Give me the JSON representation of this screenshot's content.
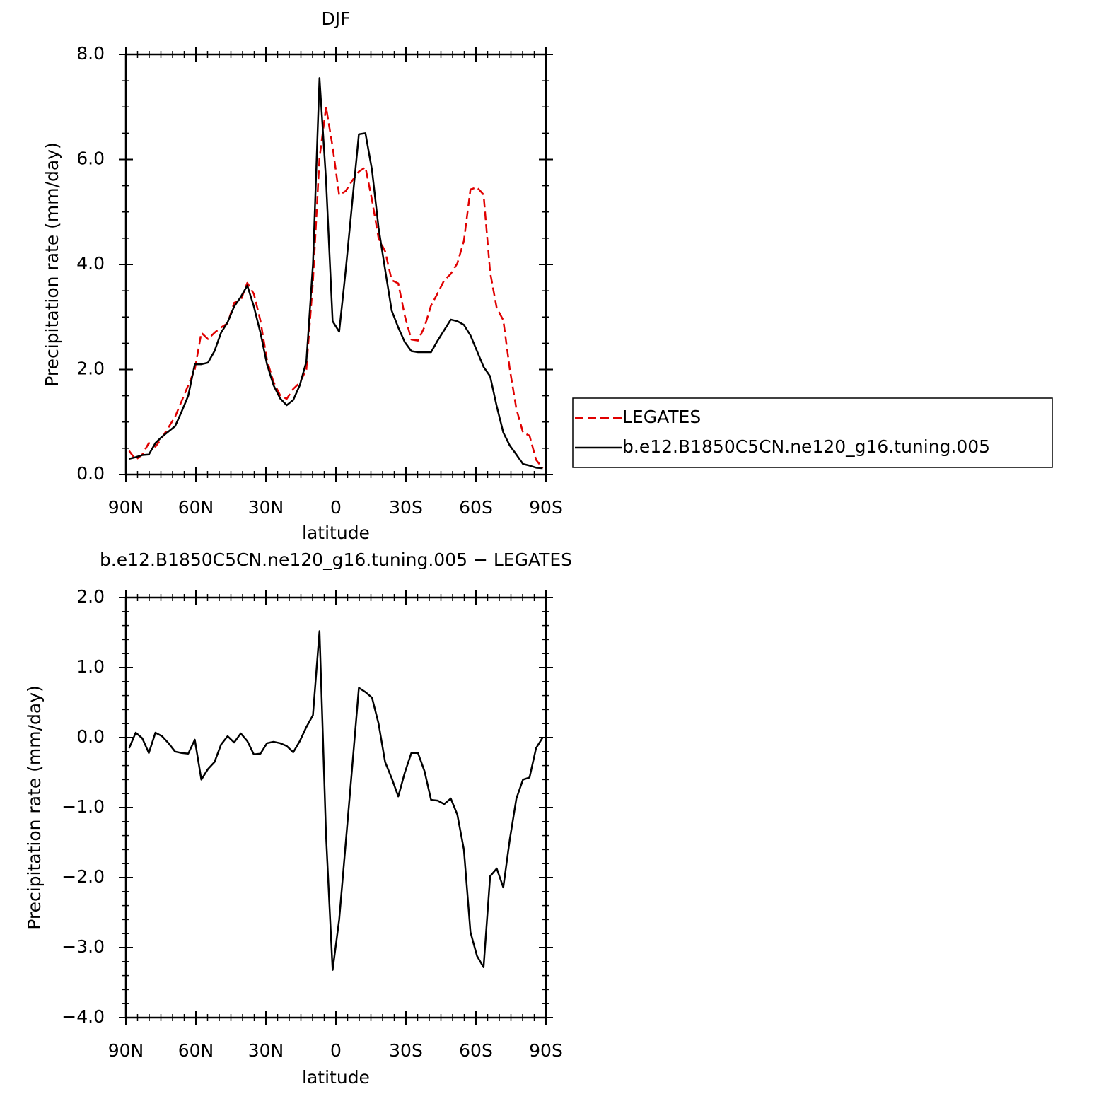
{
  "chart_data": [
    {
      "type": "line",
      "title": "DJF",
      "xlabel": "latitude",
      "ylabel": "Precipitation rate (mm/day)",
      "x": [
        88.59,
        85.78,
        82.97,
        80.16,
        77.34,
        74.53,
        71.72,
        68.91,
        66.09,
        63.28,
        60.47,
        57.66,
        54.84,
        52.03,
        49.22,
        46.41,
        43.59,
        40.78,
        37.97,
        35.16,
        32.34,
        29.53,
        26.72,
        23.91,
        21.09,
        18.28,
        15.47,
        12.66,
        9.84,
        7.03,
        4.22,
        1.41,
        -1.41,
        -4.22,
        -7.03,
        -9.84,
        -12.66,
        -15.47,
        -18.28,
        -21.09,
        -23.91,
        -26.72,
        -29.53,
        -32.34,
        -35.16,
        -37.97,
        -40.78,
        -43.59,
        -46.41,
        -49.22,
        -52.03,
        -54.84,
        -57.66,
        -60.47,
        -63.28,
        -66.09,
        -68.91,
        -71.72,
        -74.53,
        -77.34,
        -80.16,
        -82.97,
        -85.78,
        -88.59
      ],
      "series": [
        {
          "name": "LEGATES",
          "color": "#e00000",
          "linestyle": "dashed",
          "values": [
            0.45,
            0.28,
            0.38,
            0.6,
            0.53,
            0.7,
            0.9,
            1.1,
            1.4,
            1.7,
            2.0,
            2.7,
            2.58,
            2.7,
            2.8,
            2.88,
            3.27,
            3.32,
            3.65,
            3.44,
            2.93,
            2.18,
            1.76,
            1.51,
            1.44,
            1.63,
            1.75,
            2.0,
            3.68,
            6.03,
            7.0,
            6.24,
            5.32,
            5.4,
            5.6,
            5.77,
            5.85,
            5.23,
            4.5,
            4.25,
            3.7,
            3.64,
            3.02,
            2.57,
            2.55,
            2.81,
            3.22,
            3.45,
            3.7,
            3.82,
            4.02,
            4.45,
            5.43,
            5.47,
            5.33,
            3.85,
            3.17,
            2.94,
            2.0,
            1.25,
            0.8,
            0.74,
            0.28,
            0.12
          ]
        },
        {
          "name": "b.e12.B1850C5CN.ne120_g16.tuning.005",
          "color": "#000000",
          "linestyle": "solid",
          "values": [
            0.3,
            0.33,
            0.37,
            0.38,
            0.6,
            0.72,
            0.82,
            0.92,
            1.2,
            1.5,
            2.1,
            2.1,
            2.13,
            2.35,
            2.7,
            2.9,
            3.2,
            3.38,
            3.6,
            3.2,
            2.7,
            2.1,
            1.7,
            1.45,
            1.32,
            1.42,
            1.7,
            2.15,
            4.0,
            7.55,
            5.6,
            2.92,
            2.72,
            3.9,
            5.2,
            6.48,
            6.5,
            5.8,
            4.7,
            3.9,
            3.12,
            2.8,
            2.52,
            2.35,
            2.33,
            2.33,
            2.33,
            2.55,
            2.75,
            2.95,
            2.92,
            2.85,
            2.65,
            2.35,
            2.05,
            1.87,
            1.3,
            0.8,
            0.55,
            0.38,
            0.2,
            0.17,
            0.13,
            0.12
          ]
        }
      ],
      "xlim": [
        90,
        -90
      ],
      "xticks": [
        {
          "value": 90,
          "label": "90N"
        },
        {
          "value": 60,
          "label": "60N"
        },
        {
          "value": 30,
          "label": "30N"
        },
        0,
        {
          "value": -30,
          "label": "30S"
        },
        {
          "value": -60,
          "label": "60S"
        },
        {
          "value": -90,
          "label": "90S"
        }
      ],
      "ylim": [
        0,
        8
      ],
      "yticks": [
        {
          "value": 0,
          "label": "0.0"
        },
        {
          "value": 2,
          "label": "2.0"
        },
        {
          "value": 4,
          "label": "4.0"
        },
        {
          "value": 6,
          "label": "6.0"
        },
        {
          "value": 8,
          "label": "8.0"
        }
      ],
      "legend": "right"
    },
    {
      "type": "line",
      "title": "b.e12.B1850C5CN.ne120_g16.tuning.005 − LEGATES",
      "xlabel": "latitude",
      "ylabel": "Precipitation rate (mm/day)",
      "x": [
        88.59,
        85.78,
        82.97,
        80.16,
        77.34,
        74.53,
        71.72,
        68.91,
        66.09,
        63.28,
        60.47,
        57.66,
        54.84,
        52.03,
        49.22,
        46.41,
        43.59,
        40.78,
        37.97,
        35.16,
        32.34,
        29.53,
        26.72,
        23.91,
        21.09,
        18.28,
        15.47,
        12.66,
        9.84,
        7.03,
        4.22,
        1.41,
        -1.41,
        -4.22,
        -7.03,
        -9.84,
        -12.66,
        -15.47,
        -18.28,
        -21.09,
        -23.91,
        -26.72,
        -29.53,
        -32.34,
        -35.16,
        -37.97,
        -40.78,
        -43.59,
        -46.41,
        -49.22,
        -52.03,
        -54.84,
        -57.66,
        -60.47,
        -63.28,
        -66.09,
        -68.91,
        -71.72,
        -74.53,
        -77.34,
        -80.16,
        -82.97,
        -85.78,
        -88.59
      ],
      "color": "#000000",
      "values": [
        -0.15,
        0.07,
        -0.01,
        -0.22,
        0.07,
        0.02,
        -0.08,
        -0.2,
        -0.22,
        -0.23,
        -0.03,
        -0.6,
        -0.45,
        -0.35,
        -0.1,
        0.02,
        -0.07,
        0.06,
        -0.05,
        -0.24,
        -0.23,
        -0.08,
        -0.06,
        -0.08,
        -0.12,
        -0.21,
        -0.05,
        0.15,
        0.32,
        1.52,
        -1.4,
        -3.32,
        -2.6,
        -1.5,
        -0.4,
        0.71,
        0.65,
        0.57,
        0.2,
        -0.35,
        -0.58,
        -0.84,
        -0.5,
        -0.22,
        -0.22,
        -0.48,
        -0.89,
        -0.9,
        -0.95,
        -0.87,
        -1.1,
        -1.6,
        -2.78,
        -3.12,
        -3.28,
        -1.98,
        -1.87,
        -2.14,
        -1.45,
        -0.87,
        -0.6,
        -0.57,
        -0.15,
        0.0
      ],
      "xlim": [
        90,
        -90
      ],
      "xticks": [
        {
          "value": 90,
          "label": "90N"
        },
        {
          "value": 60,
          "label": "60N"
        },
        {
          "value": 30,
          "label": "30N"
        },
        0,
        {
          "value": -30,
          "label": "30S"
        },
        {
          "value": -60,
          "label": "60S"
        },
        {
          "value": -90,
          "label": "90S"
        }
      ],
      "ylim": [
        -4,
        2
      ],
      "yticks": [
        {
          "value": -4,
          "label": "−4.0"
        },
        {
          "value": -3,
          "label": "−3.0"
        },
        {
          "value": -2,
          "label": "−2.0"
        },
        {
          "value": -1,
          "label": "−1.0"
        },
        {
          "value": 0,
          "label": "0.0"
        },
        {
          "value": 1,
          "label": "1.0"
        },
        {
          "value": 2,
          "label": "2.0"
        }
      ]
    }
  ]
}
